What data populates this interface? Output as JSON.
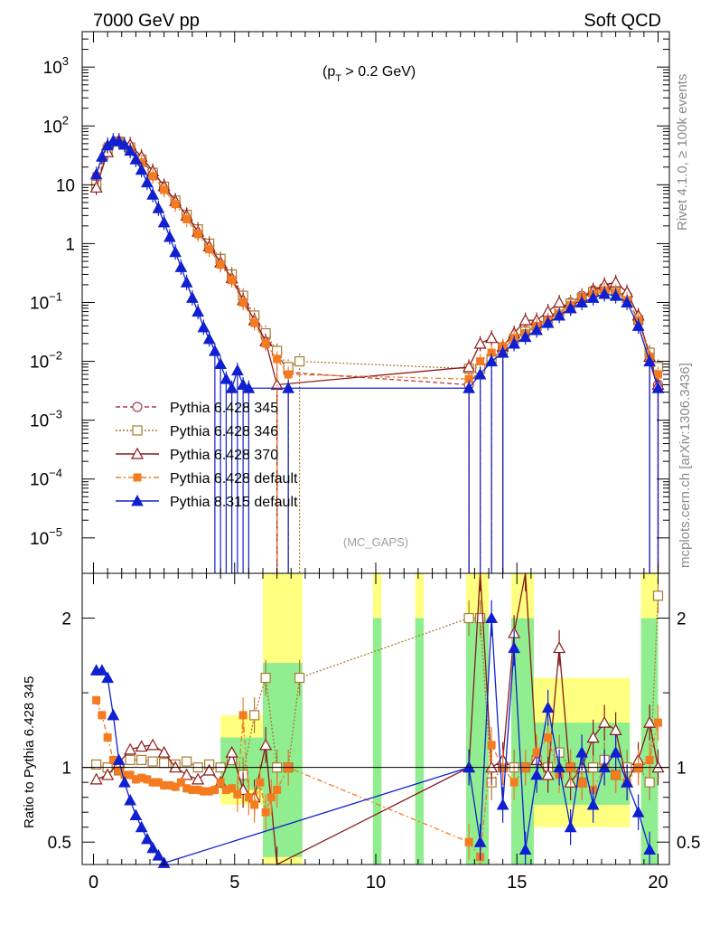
{
  "header": {
    "left_title": "7000 GeV pp",
    "right_title": "Soft QCD",
    "cut_label": "(p",
    "cut_sub": "T",
    "cut_rest": " > 0.2 GeV)",
    "watermark": "(MC_GAPS)",
    "side_rivet": "Rivet 4.1.0, ≥ 100k events",
    "side_mcplots": "mcplots.cern.ch [arXiv:1306.3436]"
  },
  "colors": {
    "p345": "#b03a48",
    "p346": "#a87a30",
    "p370": "#8b1a1a",
    "p6def": "#f47b20",
    "p8def": "#1020d0",
    "band_green": "#90ee90",
    "band_yellow": "#ffff80"
  },
  "chart_data": [
    {
      "type": "scatter",
      "title": "",
      "xlabel": "",
      "ylabel": "",
      "yscale": "log",
      "xlim": [
        -0.4,
        20.4
      ],
      "ylim": [
        2.5e-06,
        4000
      ],
      "yticks": [
        {
          "v": 1e-05,
          "label": "10",
          "exp": "−5"
        },
        {
          "v": 0.0001,
          "label": "10",
          "exp": "−4"
        },
        {
          "v": 0.001,
          "label": "10",
          "exp": "−3"
        },
        {
          "v": 0.01,
          "label": "10",
          "exp": "−2"
        },
        {
          "v": 0.1,
          "label": "10",
          "exp": "−1"
        },
        {
          "v": 1,
          "label": "1",
          "exp": ""
        },
        {
          "v": 10,
          "label": "10",
          "exp": ""
        },
        {
          "v": 100,
          "label": "10",
          "exp": "2"
        },
        {
          "v": 1000,
          "label": "10",
          "exp": "3"
        }
      ],
      "series": [
        {
          "name": "Pythia 6.428 345",
          "key": "p345",
          "marker": "circle-open",
          "dash": "5,3",
          "x": [
            0.1,
            0.5,
            0.9,
            1.3,
            1.7,
            2.1,
            2.5,
            2.9,
            3.3,
            3.7,
            4.1,
            4.5,
            4.9,
            5.3,
            5.7,
            6.1,
            6.5,
            6.9,
            13.3,
            13.7,
            14.1,
            14.5,
            14.9,
            15.3,
            15.7,
            16.1,
            16.5,
            16.9,
            17.3,
            17.7,
            18.1,
            18.5,
            18.9,
            19.3,
            19.7,
            20.0
          ],
          "y": [
            10,
            40,
            55,
            42,
            26,
            15.5,
            9,
            5.2,
            3,
            1.7,
            0.95,
            0.52,
            0.28,
            0.12,
            0.055,
            0.026,
            0.014,
            0.0065,
            0.004,
            0.0075,
            0.012,
            0.017,
            0.025,
            0.033,
            0.042,
            0.055,
            0.075,
            0.1,
            0.13,
            0.16,
            0.18,
            0.17,
            0.12,
            0.05,
            0.014,
            0.004
          ]
        },
        {
          "name": "Pythia 6.428 346",
          "key": "p346",
          "marker": "square-open",
          "dash": "2,2",
          "x": [
            0.1,
            0.5,
            0.9,
            1.3,
            1.7,
            2.1,
            2.5,
            2.9,
            3.3,
            3.7,
            4.1,
            4.5,
            4.9,
            5.3,
            5.7,
            6.1,
            6.5,
            6.9,
            7.3,
            13.3,
            13.7,
            14.1,
            14.5,
            14.9,
            15.3,
            15.7,
            16.1,
            16.5,
            16.9,
            17.3,
            17.7,
            18.1,
            18.5,
            18.9,
            19.3,
            19.7,
            20.0
          ],
          "y": [
            10,
            40,
            54,
            43,
            27,
            16,
            9.3,
            5.4,
            3.1,
            1.75,
            1.0,
            0.55,
            0.3,
            0.13,
            0.06,
            0.03,
            0.015,
            0.008,
            0.01,
            0.0075,
            0.0075,
            0.011,
            0.016,
            0.024,
            0.032,
            0.04,
            0.052,
            0.07,
            0.095,
            0.12,
            0.15,
            0.17,
            0.16,
            0.12,
            0.05,
            0.014,
            0.008
          ]
        },
        {
          "name": "Pythia 6.428 370",
          "key": "p370",
          "marker": "triangle-open",
          "dash": "",
          "x": [
            0.1,
            0.5,
            0.9,
            1.3,
            1.7,
            2.1,
            2.5,
            2.9,
            3.3,
            3.7,
            4.1,
            4.5,
            4.9,
            5.3,
            5.7,
            6.1,
            6.5,
            13.3,
            13.7,
            14.1,
            14.5,
            14.9,
            15.3,
            15.7,
            16.1,
            16.5,
            16.9,
            17.3,
            17.7,
            18.1,
            18.5,
            18.9,
            19.3,
            19.7,
            20.0
          ],
          "y": [
            9,
            36,
            56,
            48,
            30,
            17,
            9.5,
            5.3,
            3.0,
            1.6,
            0.9,
            0.48,
            0.26,
            0.11,
            0.05,
            0.022,
            0.004,
            0.008,
            0.02,
            0.025,
            0.018,
            0.03,
            0.05,
            0.05,
            0.07,
            0.1,
            0.08,
            0.12,
            0.16,
            0.2,
            0.22,
            0.15,
            0.06,
            0.012,
            0.004
          ]
        },
        {
          "name": "Pythia 6.428 default",
          "key": "p6def",
          "marker": "square-filled",
          "dash": "6,3,2,3",
          "x": [
            0.1,
            0.5,
            0.9,
            1.3,
            1.7,
            2.1,
            2.5,
            2.9,
            3.3,
            3.7,
            4.1,
            4.5,
            4.9,
            5.3,
            5.7,
            6.1,
            6.5,
            6.9,
            13.3,
            13.7,
            14.1,
            14.5,
            14.9,
            15.3,
            15.7,
            16.1,
            16.5,
            16.9,
            17.3,
            17.7,
            18.1,
            18.5,
            18.9,
            19.3,
            19.7,
            20.0
          ],
          "y": [
            14,
            45,
            54,
            40,
            24,
            14,
            8.2,
            4.7,
            2.6,
            1.45,
            0.8,
            0.44,
            0.24,
            0.1,
            0.045,
            0.02,
            0.011,
            0.006,
            0.005,
            0.01,
            0.014,
            0.018,
            0.025,
            0.03,
            0.04,
            0.05,
            0.065,
            0.09,
            0.12,
            0.14,
            0.16,
            0.15,
            0.11,
            0.05,
            0.012,
            0.006
          ]
        },
        {
          "name": "Pythia 8.315 default",
          "key": "p8def",
          "marker": "triangle-filled",
          "dash": "",
          "x": [
            0.1,
            0.3,
            0.5,
            0.7,
            0.9,
            1.1,
            1.3,
            1.5,
            1.7,
            1.9,
            2.1,
            2.3,
            2.5,
            2.7,
            2.9,
            3.1,
            3.3,
            3.5,
            3.7,
            3.9,
            4.1,
            4.3,
            4.5,
            4.7,
            4.9,
            5.1,
            5.3,
            5.5,
            6.9,
            13.3,
            13.7,
            14.1,
            14.5,
            14.9,
            15.3,
            15.7,
            16.1,
            16.5,
            16.9,
            17.3,
            17.7,
            18.1,
            18.5,
            18.9,
            19.3,
            19.7,
            20.0
          ],
          "y": [
            15,
            30,
            47,
            56,
            55,
            48,
            38,
            27,
            18,
            11,
            6.8,
            4.0,
            2.3,
            1.3,
            0.72,
            0.4,
            0.22,
            0.12,
            0.07,
            0.038,
            0.024,
            0.015,
            0.009,
            0.005,
            0.0035,
            0.007,
            0.004,
            0.0035,
            0.0035,
            0.0035,
            0.006,
            0.01,
            0.014,
            0.02,
            0.026,
            0.034,
            0.045,
            0.06,
            0.08,
            0.1,
            0.12,
            0.14,
            0.13,
            0.1,
            0.04,
            0.01,
            0.0035
          ]
        }
      ]
    },
    {
      "type": "scatter",
      "title": "",
      "xlabel": "",
      "ylabel": "Ratio to Pythia 6.428 345",
      "xlim": [
        -0.4,
        20.4
      ],
      "ylim": [
        0.35,
        2.3
      ],
      "xticks": [
        0,
        5,
        10,
        15,
        20
      ],
      "yticks": [
        0.5,
        1,
        2
      ],
      "reference": 1,
      "bands": [
        {
          "x0": 4.5,
          "x1": 6.0,
          "g": [
            0.85,
            1.2
          ],
          "y": [
            0.75,
            1.35
          ]
        },
        {
          "x0": 6.0,
          "x1": 7.4,
          "g": [
            0.4,
            1.7
          ],
          "y": [
            0.35,
            2.3
          ]
        },
        {
          "x0": 9.9,
          "x1": 10.2,
          "g": [
            0.35,
            2.0
          ],
          "y": [
            0.35,
            2.3
          ]
        },
        {
          "x0": 11.4,
          "x1": 11.7,
          "g": [
            0.35,
            2.0
          ],
          "y": [
            0.35,
            2.3
          ]
        },
        {
          "x0": 13.2,
          "x1": 14.0,
          "g": [
            0.35,
            2.0
          ],
          "y": [
            0.35,
            2.3
          ]
        },
        {
          "x0": 14.8,
          "x1": 15.6,
          "g": [
            0.35,
            2.0
          ],
          "y": [
            0.35,
            2.3
          ]
        },
        {
          "x0": 15.6,
          "x1": 19.0,
          "g": [
            0.75,
            1.3
          ],
          "y": [
            0.6,
            1.6
          ]
        },
        {
          "x0": 19.4,
          "x1": 20.0,
          "g": [
            0.35,
            2.0
          ],
          "y": [
            0.35,
            2.3
          ]
        }
      ],
      "series": [
        {
          "key": "p346",
          "marker": "square-open",
          "dash": "2,2",
          "x": [
            0.1,
            0.5,
            0.9,
            1.3,
            1.7,
            2.1,
            2.5,
            2.9,
            3.3,
            3.7,
            4.1,
            4.5,
            4.9,
            5.3,
            5.7,
            6.1,
            6.5,
            6.9,
            7.3,
            13.3,
            13.7,
            14.1,
            14.5,
            14.9,
            15.3,
            15.7,
            16.1,
            16.5,
            16.9,
            17.3,
            17.7,
            18.1,
            18.5,
            18.9,
            19.3,
            19.7,
            20.0
          ],
          "y": [
            1.02,
            1.0,
            0.98,
            1.05,
            1.05,
            1.04,
            1.03,
            1.02,
            1.04,
            1.0,
            1.02,
            1.0,
            1.05,
            0.95,
            1.35,
            1.6,
            1.0,
            1.0,
            1.6,
            2.0,
            2.0,
            0.9,
            1.0,
            1.0,
            1.0,
            1.05,
            1.0,
            1.1,
            1.0,
            0.9,
            1.0,
            1.05,
            0.95,
            1.0,
            1.0,
            0.9,
            2.15
          ]
        },
        {
          "key": "p370",
          "marker": "triangle-open",
          "dash": "",
          "x": [
            0.1,
            0.5,
            0.9,
            1.3,
            1.7,
            2.1,
            2.5,
            2.9,
            3.3,
            3.7,
            4.1,
            4.5,
            4.9,
            5.3,
            5.7,
            6.1,
            6.5,
            13.3,
            13.7,
            14.1,
            14.5,
            14.9,
            15.3,
            15.7,
            16.1,
            16.5,
            16.9,
            17.3,
            17.7,
            18.1,
            18.5,
            18.9,
            19.3,
            19.7,
            20.0
          ],
          "y": [
            0.92,
            0.95,
            1.03,
            1.12,
            1.14,
            1.15,
            1.1,
            1.0,
            0.95,
            0.92,
            0.98,
            0.9,
            1.1,
            0.85,
            0.8,
            1.15,
            0.35,
            1.0,
            2.3,
            1.0,
            1.05,
            1.9,
            2.3,
            1.05,
            0.95,
            1.8,
            0.9,
            1.0,
            1.2,
            1.3,
            1.25,
            0.9,
            1.05,
            1.3,
            1.0
          ]
        },
        {
          "key": "p6def",
          "marker": "square-filled",
          "dash": "6,3,2,3",
          "x": [
            0.1,
            0.3,
            0.5,
            0.7,
            0.9,
            1.1,
            1.3,
            1.5,
            1.7,
            1.9,
            2.1,
            2.3,
            2.5,
            2.7,
            2.9,
            3.1,
            3.3,
            3.5,
            3.7,
            3.9,
            4.1,
            4.3,
            4.5,
            4.7,
            4.9,
            5.1,
            5.3,
            5.5,
            5.7,
            5.9,
            6.1,
            6.3,
            6.5,
            6.9,
            13.3,
            13.7,
            14.1,
            14.5,
            14.9,
            15.3,
            15.7,
            16.1,
            16.5,
            16.9,
            17.3,
            17.7,
            18.1,
            18.5,
            18.9,
            19.3,
            19.7,
            20.0
          ],
          "y": [
            1.45,
            1.35,
            1.2,
            1.05,
            0.98,
            0.95,
            0.95,
            0.92,
            0.93,
            0.92,
            0.9,
            0.9,
            0.88,
            0.88,
            0.87,
            0.9,
            0.86,
            0.85,
            0.85,
            0.84,
            0.84,
            0.85,
            0.9,
            0.85,
            0.86,
            0.82,
            1.35,
            0.8,
            0.75,
            0.9,
            0.7,
            0.8,
            0.85,
            1.0,
            0.5,
            0.4,
            1.15,
            1.0,
            0.9,
            1.0,
            1.1,
            1.2,
            0.95,
            1.0,
            0.9,
            0.85,
            1.0,
            0.95,
            0.9,
            1.0,
            1.05,
            1.3
          ]
        },
        {
          "key": "p8def",
          "marker": "triangle-filled",
          "dash": "",
          "x": [
            0.1,
            0.3,
            0.5,
            0.7,
            0.9,
            1.1,
            1.3,
            1.5,
            1.7,
            1.9,
            2.1,
            2.3,
            2.5,
            13.3,
            13.7,
            14.1,
            14.5,
            14.9,
            15.3,
            15.7,
            16.1,
            16.5,
            16.9,
            17.3,
            17.7,
            18.1,
            18.5,
            18.9,
            19.3,
            19.7
          ],
          "y": [
            1.65,
            1.65,
            1.6,
            1.35,
            1.05,
            0.9,
            0.78,
            0.68,
            0.6,
            0.52,
            0.46,
            0.41,
            0.36,
            1.0,
            0.5,
            2.0,
            0.75,
            1.8,
            0.45,
            0.95,
            1.4,
            1.0,
            0.6,
            1.1,
            0.75,
            1.0,
            1.1,
            0.9,
            0.7,
            0.45
          ]
        }
      ]
    }
  ]
}
